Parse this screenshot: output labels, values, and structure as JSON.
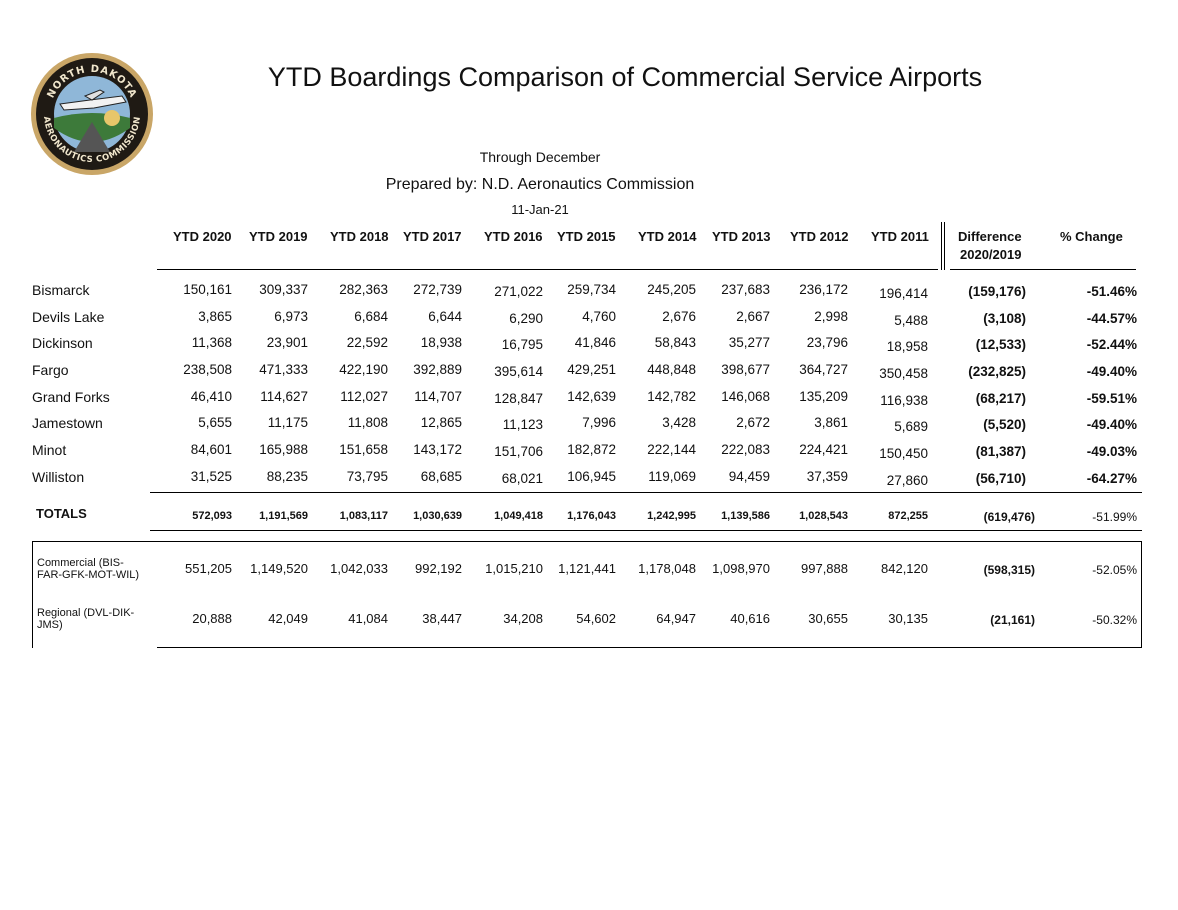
{
  "logo": {
    "text_top": "NORTH DAKOTA",
    "text_bottom": "AERONAUTICS COMMISSION"
  },
  "title": "YTD Boardings Comparison of Commercial Service Airports",
  "subtitle": "Through December",
  "prepared_by": "Prepared by: N.D. Aeronautics Commission",
  "date": "11-Jan-21",
  "headers": [
    "YTD 2020",
    "YTD 2019",
    "YTD 2018",
    "YTD 2017",
    "YTD 2016",
    "YTD 2015",
    "YTD 2014",
    "YTD 2013",
    "YTD 2012",
    "YTD 2011"
  ],
  "diff_header": {
    "line1": "Difference",
    "line2": "2020/2019"
  },
  "pct_header": "% Change",
  "rows": [
    {
      "name": "Bismarck",
      "values": [
        "150,161",
        "309,337",
        "282,363",
        "272,739",
        "271,022",
        "259,734",
        "245,205",
        "237,683",
        "236,172",
        "196,414"
      ],
      "diff": "(159,176)",
      "pct": "-51.46%"
    },
    {
      "name": "Devils Lake",
      "values": [
        "3,865",
        "6,973",
        "6,684",
        "6,644",
        "6,290",
        "4,760",
        "2,676",
        "2,667",
        "2,998",
        "5,488"
      ],
      "diff": "(3,108)",
      "pct": "-44.57%"
    },
    {
      "name": "Dickinson",
      "values": [
        "11,368",
        "23,901",
        "22,592",
        "18,938",
        "16,795",
        "41,846",
        "58,843",
        "35,277",
        "23,796",
        "18,958"
      ],
      "diff": "(12,533)",
      "pct": "-52.44%"
    },
    {
      "name": "Fargo",
      "values": [
        "238,508",
        "471,333",
        "422,190",
        "392,889",
        "395,614",
        "429,251",
        "448,848",
        "398,677",
        "364,727",
        "350,458"
      ],
      "diff": "(232,825)",
      "pct": "-49.40%"
    },
    {
      "name": "Grand Forks",
      "values": [
        "46,410",
        "114,627",
        "112,027",
        "114,707",
        "128,847",
        "142,639",
        "142,782",
        "146,068",
        "135,209",
        "116,938"
      ],
      "diff": "(68,217)",
      "pct": "-59.51%"
    },
    {
      "name": "Jamestown",
      "values": [
        "5,655",
        "11,175",
        "11,808",
        "12,865",
        "11,123",
        "7,996",
        "3,428",
        "2,672",
        "3,861",
        "5,689"
      ],
      "diff": "(5,520)",
      "pct": "-49.40%"
    },
    {
      "name": "Minot",
      "values": [
        "84,601",
        "165,988",
        "151,658",
        "143,172",
        "151,706",
        "182,872",
        "222,144",
        "222,083",
        "224,421",
        "150,450"
      ],
      "diff": "(81,387)",
      "pct": "-49.03%"
    },
    {
      "name": "Williston",
      "values": [
        "31,525",
        "88,235",
        "73,795",
        "68,685",
        "68,021",
        "106,945",
        "119,069",
        "94,459",
        "37,359",
        "27,860"
      ],
      "diff": "(56,710)",
      "pct": "-64.27%"
    }
  ],
  "totals": {
    "name": "TOTALS",
    "values": [
      "572,093",
      "1,191,569",
      "1,083,117",
      "1,030,639",
      "1,049,418",
      "1,176,043",
      "1,242,995",
      "1,139,586",
      "1,028,543",
      "872,255"
    ],
    "diff": "(619,476)",
    "pct": "-51.99%"
  },
  "groups": [
    {
      "name_line1": "Commercial (BIS-",
      "name_line2": "FAR-GFK-MOT-WIL)",
      "values": [
        "551,205",
        "1,149,520",
        "1,042,033",
        "992,192",
        "1,015,210",
        "1,121,441",
        "1,178,048",
        "1,098,970",
        "997,888",
        "842,120"
      ],
      "diff": "(598,315)",
      "pct": "-52.05%"
    },
    {
      "name_line1": "Regional (DVL-DIK-",
      "name_line2": "JMS)",
      "values": [
        "20,888",
        "42,049",
        "41,084",
        "38,447",
        "34,208",
        "54,602",
        "64,947",
        "40,616",
        "30,655",
        "30,135"
      ],
      "diff": "(21,161)",
      "pct": "-50.32%"
    }
  ]
}
